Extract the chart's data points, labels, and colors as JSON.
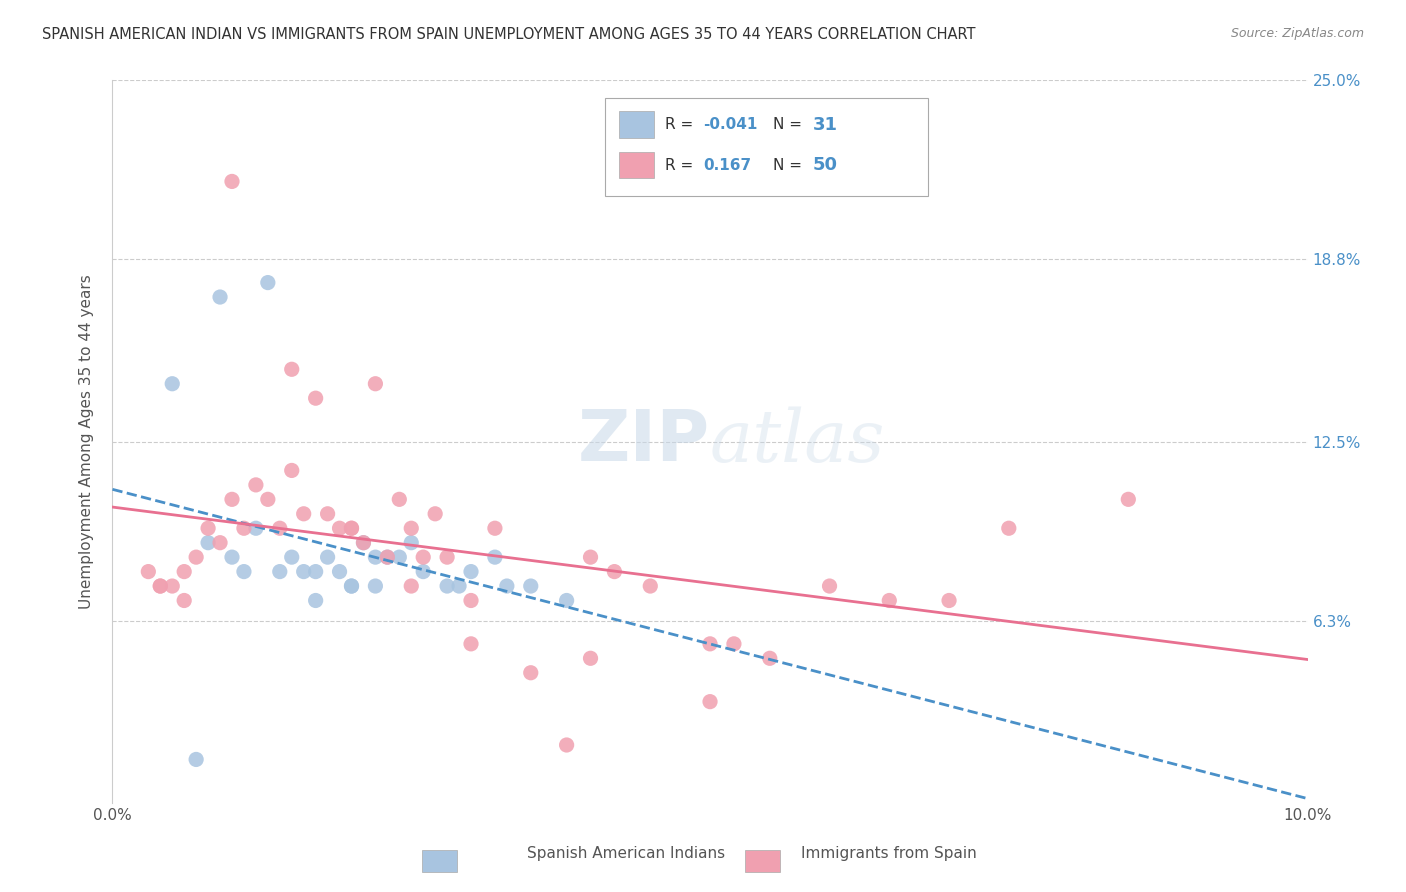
{
  "title": "SPANISH AMERICAN INDIAN VS IMMIGRANTS FROM SPAIN UNEMPLOYMENT AMONG AGES 35 TO 44 YEARS CORRELATION CHART",
  "source": "Source: ZipAtlas.com",
  "ylabel": "Unemployment Among Ages 35 to 44 years",
  "x_min": 0.0,
  "x_max": 10.0,
  "y_min": 0.0,
  "y_max": 25.0,
  "y_ticks": [
    0.0,
    6.3,
    12.5,
    18.8,
    25.0
  ],
  "blue_R": -0.041,
  "blue_N": 31,
  "pink_R": 0.167,
  "pink_N": 50,
  "blue_color": "#a8c4e0",
  "pink_color": "#f0a0b0",
  "blue_line_color": "#4a90c8",
  "pink_line_color": "#e87090",
  "legend_label_blue": "Spanish American Indians",
  "legend_label_pink": "Immigrants from Spain",
  "watermark_zip": "ZIP",
  "watermark_atlas": "atlas",
  "blue_scatter_x": [
    0.5,
    0.8,
    1.0,
    1.2,
    1.3,
    1.5,
    1.6,
    1.7,
    1.8,
    1.9,
    2.0,
    2.1,
    2.2,
    2.3,
    2.4,
    2.5,
    2.6,
    2.8,
    3.0,
    3.2,
    3.5,
    3.8,
    1.1,
    0.9,
    1.4,
    2.0,
    2.2,
    1.7,
    2.9,
    3.3,
    0.7
  ],
  "blue_scatter_y": [
    14.5,
    9.0,
    8.5,
    9.5,
    18.0,
    8.5,
    8.0,
    8.0,
    8.5,
    8.0,
    7.5,
    9.0,
    8.5,
    8.5,
    8.5,
    9.0,
    8.0,
    7.5,
    8.0,
    8.5,
    7.5,
    7.0,
    8.0,
    17.5,
    8.0,
    7.5,
    7.5,
    7.0,
    7.5,
    7.5,
    1.5
  ],
  "pink_scatter_x": [
    0.3,
    0.4,
    0.5,
    0.6,
    0.7,
    0.8,
    0.9,
    1.0,
    1.1,
    1.2,
    1.3,
    1.4,
    1.5,
    1.6,
    1.7,
    1.8,
    1.9,
    2.0,
    2.1,
    2.2,
    2.3,
    2.4,
    2.5,
    2.6,
    2.7,
    2.8,
    3.0,
    3.2,
    3.5,
    3.8,
    4.0,
    4.2,
    4.5,
    5.0,
    5.2,
    5.5,
    6.0,
    6.5,
    7.0,
    7.5,
    0.4,
    0.6,
    1.0,
    1.5,
    2.0,
    2.5,
    3.0,
    4.0,
    5.0,
    8.5
  ],
  "pink_scatter_y": [
    8.0,
    7.5,
    7.5,
    7.0,
    8.5,
    9.5,
    9.0,
    10.5,
    9.5,
    11.0,
    10.5,
    9.5,
    11.5,
    10.0,
    14.0,
    10.0,
    9.5,
    9.5,
    9.0,
    14.5,
    8.5,
    10.5,
    9.5,
    8.5,
    10.0,
    8.5,
    5.5,
    9.5,
    4.5,
    2.0,
    8.5,
    8.0,
    7.5,
    5.5,
    5.5,
    5.0,
    7.5,
    7.0,
    7.0,
    9.5,
    7.5,
    8.0,
    21.5,
    15.0,
    9.5,
    7.5,
    7.0,
    5.0,
    3.5,
    10.5
  ],
  "background_color": "#ffffff",
  "grid_color": "#cccccc"
}
